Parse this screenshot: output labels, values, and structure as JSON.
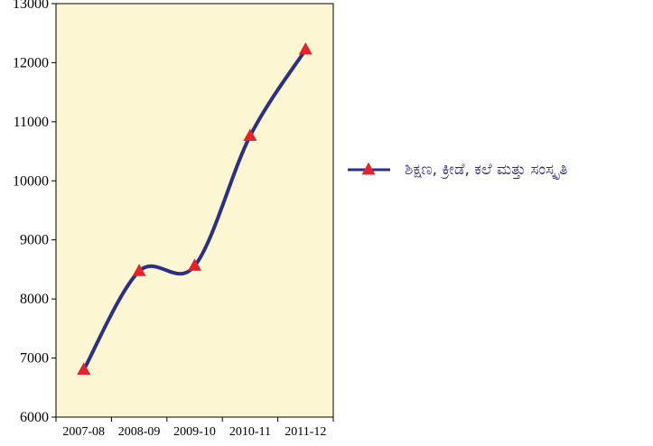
{
  "chart_data": {
    "type": "line",
    "categories": [
      "2007-08",
      "2008-09",
      "2009-10",
      "2010-11",
      "2011-12"
    ],
    "series": [
      {
        "name": "ಶಿಕ್ಷಣ, ಕ್ರೀಡೆ, ಕಲೆ ಮತ್ತು ಸಂಸ್ಕೃತಿ",
        "values": [
          6800,
          8470,
          8560,
          10760,
          12220
        ]
      }
    ],
    "ylim": [
      6000,
      13000
    ],
    "yticks": [
      6000,
      7000,
      8000,
      9000,
      10000,
      11000,
      12000,
      13000
    ],
    "title": "",
    "xlabel": "",
    "ylabel": "",
    "grid": false,
    "legend_position": "right",
    "colors": {
      "plot_background": "#fdf6d3",
      "line": "#2b2f85",
      "marker": "#e8202a"
    }
  }
}
